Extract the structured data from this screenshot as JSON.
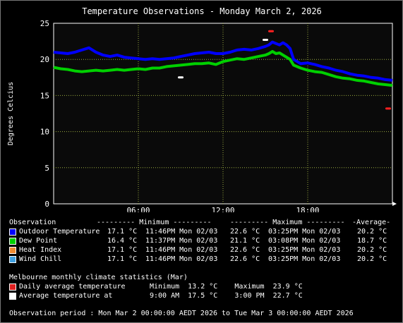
{
  "chart_data": {
    "type": "line",
    "title": "Temperature Observations - Monday March 2, 2026",
    "ylabel": "Degrees Celcius",
    "ylim": [
      0,
      25
    ],
    "yticks": [
      "0",
      "5",
      "10",
      "15",
      "20",
      "25"
    ],
    "xlim": [
      0,
      24
    ],
    "xticks": [
      {
        "x": 6,
        "label": "06:00"
      },
      {
        "x": 12,
        "label": "12:00"
      },
      {
        "x": 18,
        "label": "18:00"
      }
    ],
    "grid": true,
    "background": "#0a0a0a",
    "series": [
      {
        "name": "Outdoor Temperature",
        "color": "#0000ff",
        "x": [
          0,
          0.5,
          1,
          1.5,
          2,
          2.5,
          3,
          3.5,
          4,
          4.5,
          5,
          5.5,
          6,
          6.5,
          7,
          7.5,
          8,
          8.5,
          9,
          9.5,
          10,
          10.5,
          11,
          11.5,
          12,
          12.5,
          13,
          13.5,
          14,
          14.5,
          15,
          15.25,
          15.5,
          15.75,
          16,
          16.25,
          16.5,
          16.75,
          17,
          17.5,
          18,
          18.5,
          19,
          19.5,
          20,
          20.5,
          21,
          21.5,
          22,
          22.5,
          23,
          23.5,
          24
        ],
        "y": [
          21.0,
          20.9,
          20.8,
          21.0,
          21.3,
          21.6,
          21.0,
          20.6,
          20.4,
          20.6,
          20.3,
          20.2,
          20.1,
          20.0,
          20.1,
          20.0,
          20.1,
          20.2,
          20.4,
          20.6,
          20.8,
          20.9,
          21.0,
          20.8,
          20.8,
          21.0,
          21.3,
          21.4,
          21.3,
          21.5,
          21.8,
          22.0,
          22.4,
          22.2,
          22.0,
          22.3,
          22.0,
          21.5,
          20.0,
          19.4,
          19.5,
          19.3,
          19.0,
          18.8,
          18.5,
          18.3,
          18.0,
          17.8,
          17.7,
          17.5,
          17.4,
          17.2,
          17.1
        ]
      },
      {
        "name": "Dew Point",
        "color": "#00d000",
        "x": [
          0,
          0.5,
          1,
          1.5,
          2,
          2.5,
          3,
          3.5,
          4,
          4.5,
          5,
          5.5,
          6,
          6.5,
          7,
          7.5,
          8,
          8.5,
          9,
          9.5,
          10,
          10.5,
          11,
          11.5,
          12,
          12.5,
          13,
          13.5,
          14,
          14.5,
          15,
          15.25,
          15.5,
          15.75,
          16,
          16.25,
          16.5,
          16.75,
          17,
          17.5,
          18,
          18.5,
          19,
          19.5,
          20,
          20.5,
          21,
          21.5,
          22,
          22.5,
          23,
          23.5,
          24
        ],
        "y": [
          18.9,
          18.7,
          18.6,
          18.4,
          18.3,
          18.4,
          18.5,
          18.4,
          18.5,
          18.6,
          18.5,
          18.6,
          18.7,
          18.6,
          18.8,
          18.8,
          19.0,
          19.1,
          19.2,
          19.3,
          19.4,
          19.4,
          19.5,
          19.3,
          19.7,
          19.9,
          20.1,
          20.0,
          20.2,
          20.4,
          20.6,
          20.8,
          21.1,
          20.8,
          20.9,
          20.6,
          20.3,
          20.0,
          19.2,
          18.8,
          18.5,
          18.3,
          18.2,
          17.9,
          17.6,
          17.4,
          17.3,
          17.1,
          17.0,
          16.8,
          16.6,
          16.5,
          16.4
        ]
      }
    ],
    "markers": [
      {
        "name": "Daily average temperature max",
        "color": "#ff2020",
        "x": 15.4,
        "y": 23.9
      },
      {
        "name": "Daily average temperature min",
        "color": "#ff2020",
        "x": 23.7,
        "y": 13.2
      },
      {
        "name": "Average temperature at 15:00",
        "color": "#ffffff",
        "x": 15.0,
        "y": 22.7
      },
      {
        "name": "Average temperature at 09:00",
        "color": "#ffffff",
        "x": 9.0,
        "y": 17.5
      }
    ]
  },
  "legend": {
    "header": {
      "observation": "Observation",
      "minimum": "--------- Minimum ---------",
      "maximum": "--------- Maximum ---------",
      "average": "-Average-"
    },
    "rows": [
      {
        "label": "Outdoor Temperature",
        "color": "#0000ff",
        "min": "17.1 °C",
        "min_time": "11:46PM Mon 02/03",
        "max": "22.6 °C",
        "max_time": "03:25PM Mon 02/03",
        "avg": "20.2 °C"
      },
      {
        "label": "Dew Point",
        "color": "#00d000",
        "min": "16.4 °C",
        "min_time": "11:37PM Mon 02/03",
        "max": "21.1 °C",
        "max_time": "03:08PM Mon 02/03",
        "avg": "18.7 °C"
      },
      {
        "label": "Heat Index",
        "color": "#f08a30",
        "min": "17.1 °C",
        "min_time": "11:46PM Mon 02/03",
        "max": "22.6 °C",
        "max_time": "03:25PM Mon 02/03",
        "avg": "20.2 °C"
      },
      {
        "label": "Wind Chill",
        "color": "#40a0e0",
        "min": "17.1 °C",
        "min_time": "11:46PM Mon 02/03",
        "max": "22.6 °C",
        "max_time": "03:25PM Mon 02/03",
        "avg": "20.2 °C"
      }
    ]
  },
  "climate": {
    "header": "Melbourne monthly climate statistics (Mar)",
    "rows": [
      {
        "label": "Daily average temperature",
        "color": "#e02020",
        "text": "Minimum  13.2 °C    Maximum  23.9 °C"
      },
      {
        "label": "Average temperature at",
        "color": "#ffffff",
        "text": "9:00 AM  17.5 °C    3:00 PM  22.7 °C"
      }
    ]
  },
  "period": "Observation period : Mon Mar 2 00:00:00 AEDT 2026 to Tue Mar 3 00:00:00 AEDT 2026"
}
